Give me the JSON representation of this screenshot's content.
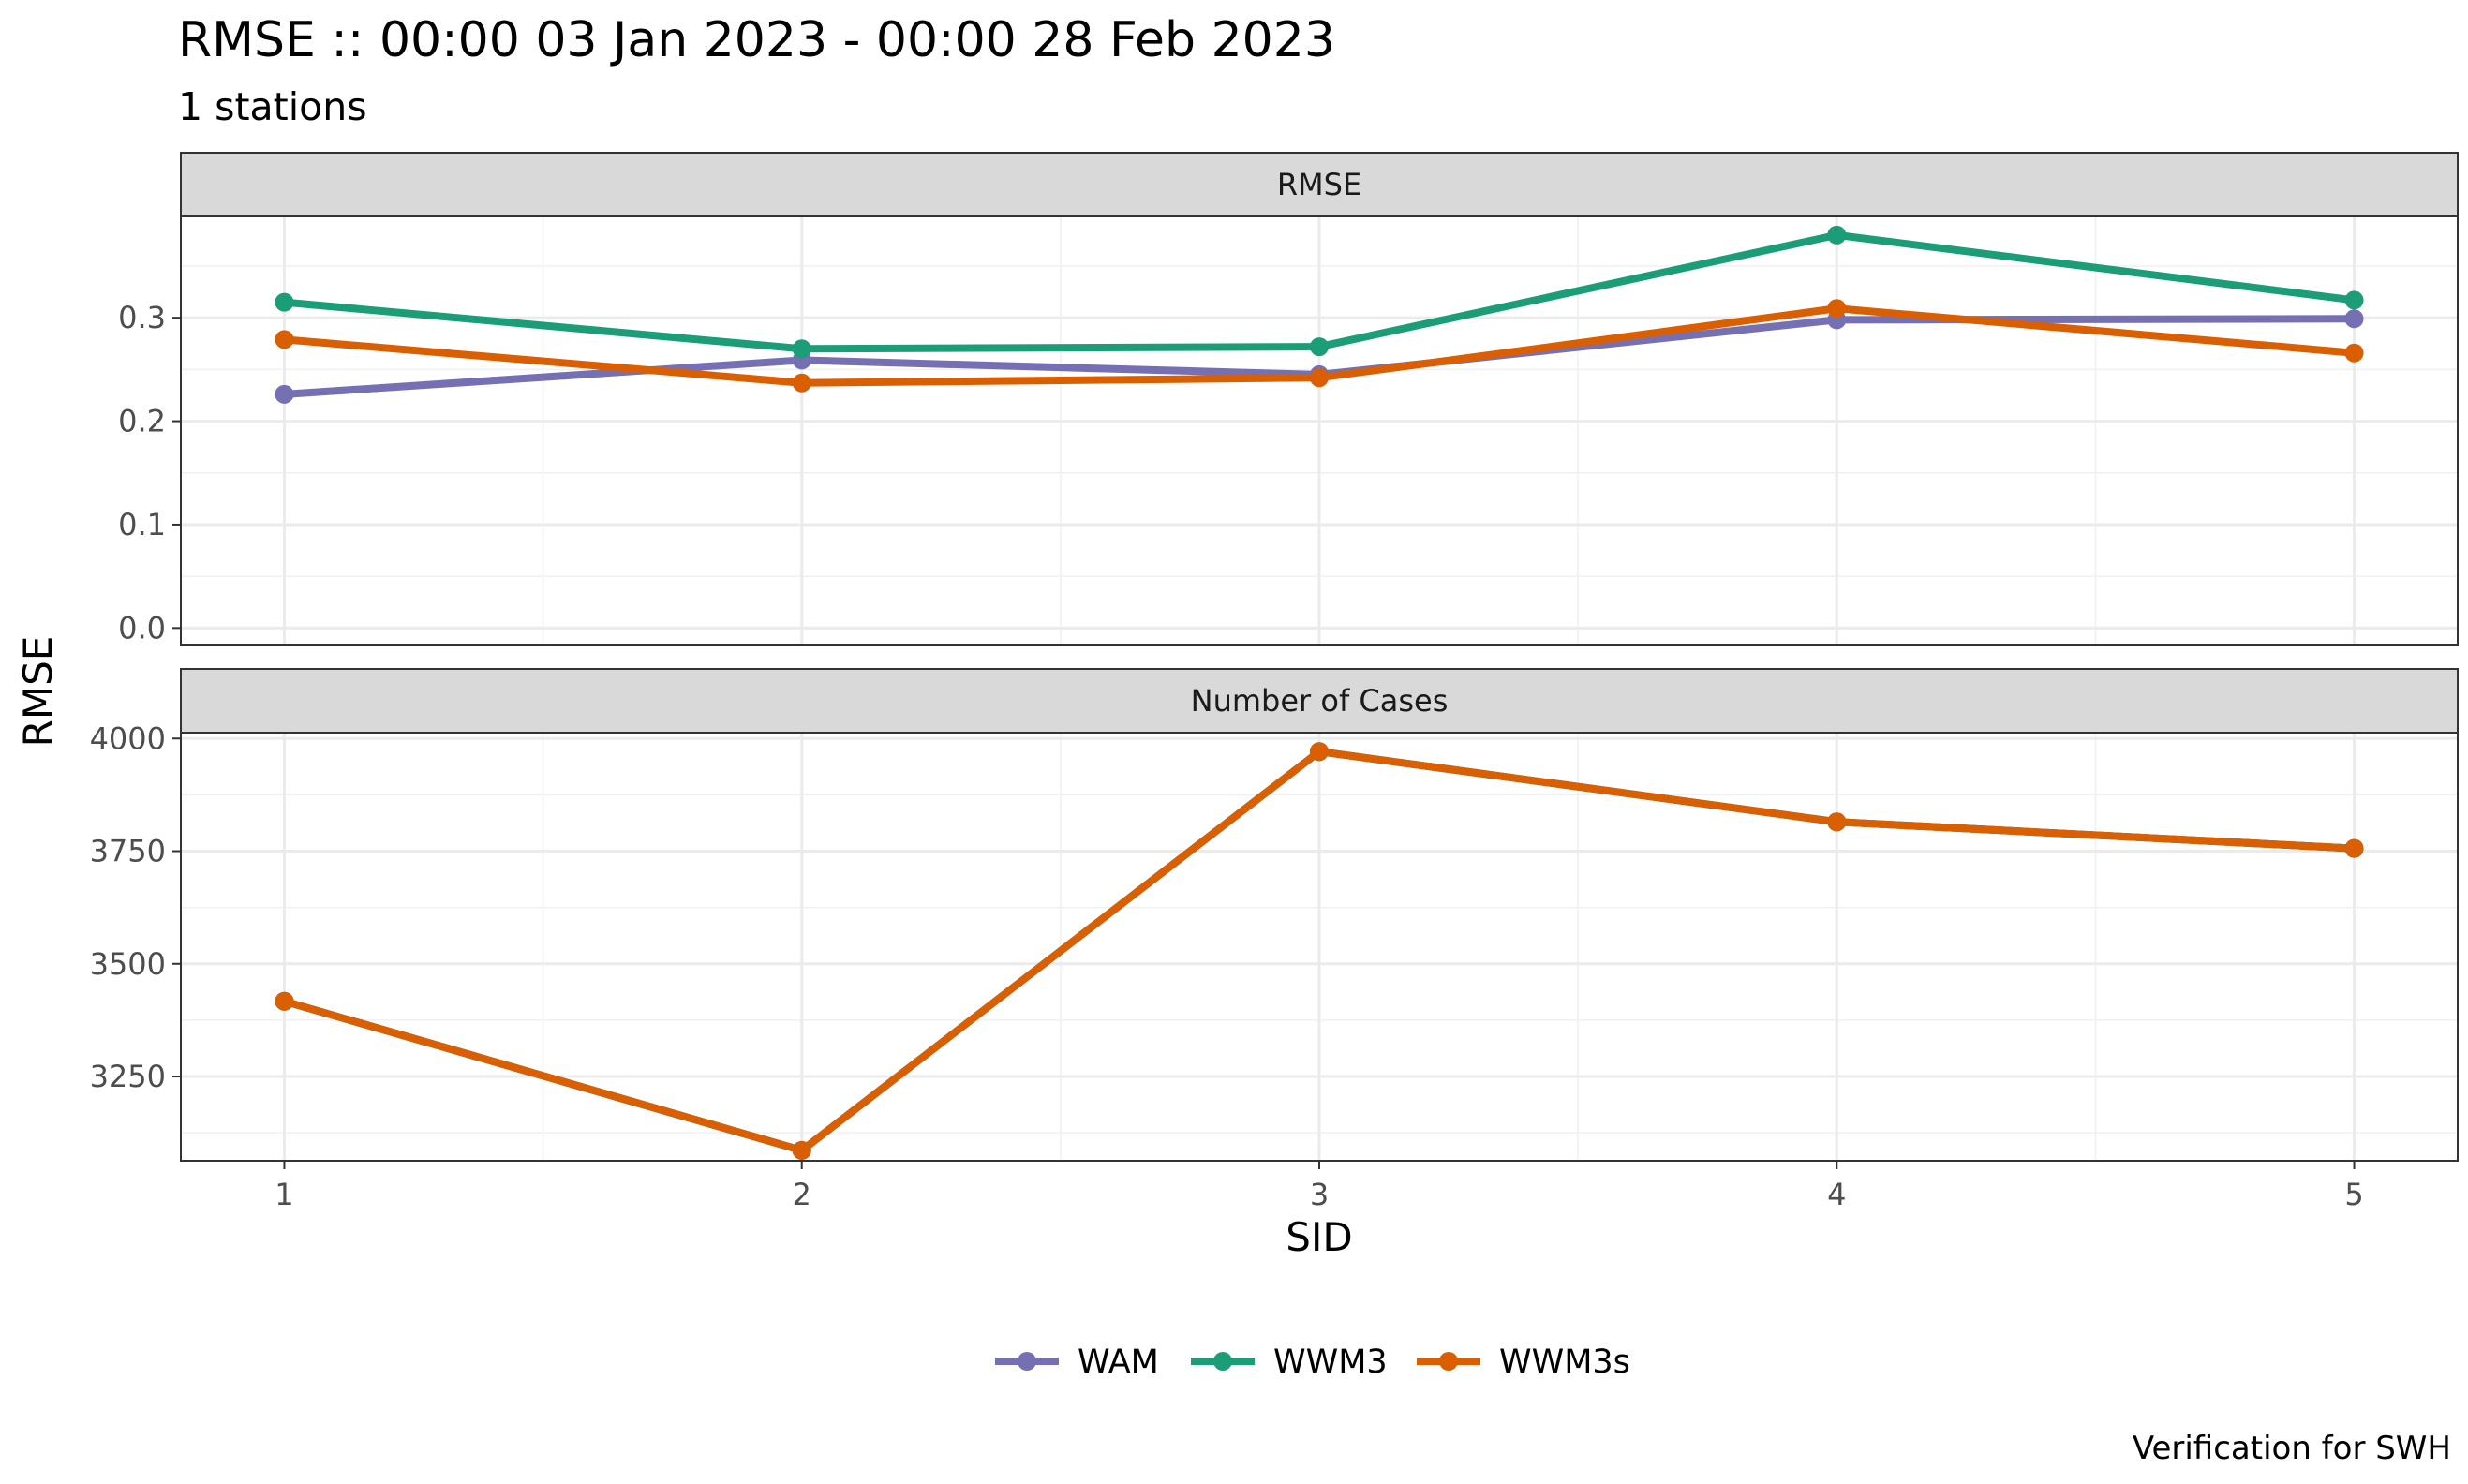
{
  "title": "RMSE :: 00:00 03 Jan 2023 - 00:00 28 Feb 2023",
  "subtitle": "1 stations",
  "caption": "Verification for SWH",
  "colors": {
    "WAM": "#7570b3",
    "WWM3": "#1b9e77",
    "WWM3s": "#d95f02"
  },
  "chart_data": {
    "type": "line",
    "xlabel": "SID",
    "ylabel": "RMSE",
    "x": [
      1,
      2,
      3,
      4,
      5
    ],
    "x_ticks": [
      "1",
      "2",
      "3",
      "4",
      "5"
    ],
    "xlim": [
      0.8,
      5.2
    ],
    "legend_position": "bottom",
    "grid": true,
    "panels": [
      {
        "strip": "RMSE",
        "ylim": [
          -0.016,
          0.398
        ],
        "y_ticks": [
          0.0,
          0.1,
          0.2,
          0.3
        ],
        "y_tick_labels": [
          "0.0",
          "0.1",
          "0.2",
          "0.3"
        ],
        "y_minor": [
          0.05,
          0.15,
          0.25,
          0.35
        ],
        "series": [
          {
            "name": "WAM",
            "values": [
              0.226,
              0.259,
              0.245,
              0.298,
              0.299
            ]
          },
          {
            "name": "WWM3",
            "values": [
              0.315,
              0.27,
              0.272,
              0.38,
              0.317
            ]
          },
          {
            "name": "WWM3s",
            "values": [
              0.279,
              0.237,
              0.242,
              0.309,
              0.266
            ]
          }
        ]
      },
      {
        "strip": "Number of Cases",
        "ylim": [
          3063,
          4013
        ],
        "y_ticks": [
          3250,
          3500,
          3750,
          4000
        ],
        "y_tick_labels": [
          "3250",
          "3500",
          "3750",
          "4000"
        ],
        "y_minor": [
          3125,
          3375,
          3625,
          3875
        ],
        "series": [
          {
            "name": "WAM",
            "values": [
              3417,
              3086,
              3971,
              3815,
              3756
            ]
          },
          {
            "name": "WWM3",
            "values": [
              3417,
              3086,
              3971,
              3815,
              3756
            ]
          },
          {
            "name": "WWM3s",
            "values": [
              3417,
              3086,
              3971,
              3815,
              3756
            ]
          }
        ]
      }
    ],
    "legend": [
      "WAM",
      "WWM3",
      "WWM3s"
    ]
  }
}
